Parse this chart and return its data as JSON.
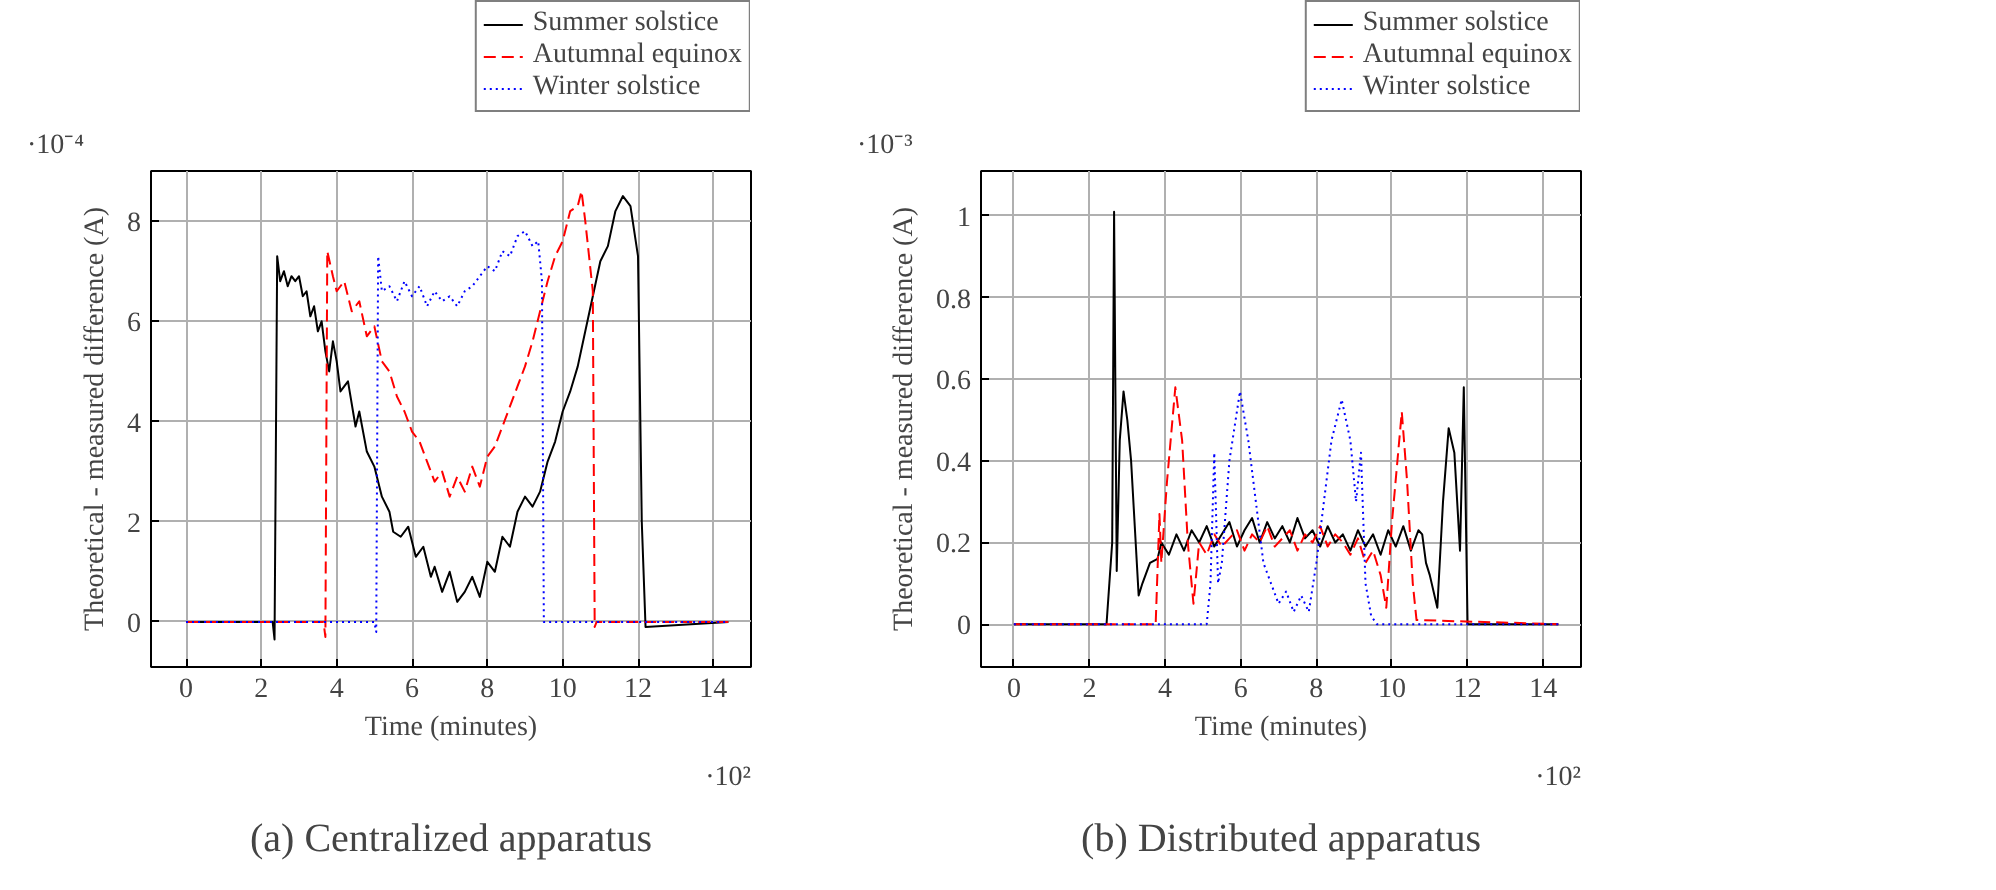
{
  "chart_data": [
    {
      "type": "line",
      "title": "(a) Centralized apparatus",
      "xlabel": "Time (minutes)",
      "ylabel": "Theoretical - measured difference (A)",
      "annotations": [
        "·10⁻⁴",
        "·10²"
      ],
      "xlim": [
        -0.93,
        15
      ],
      "ylim": [
        -0.9,
        9
      ],
      "xticks": [
        0,
        2,
        4,
        6,
        8,
        10,
        12,
        14
      ],
      "yticks": [
        0,
        2,
        4,
        6,
        8
      ],
      "grid": true,
      "legend": "top right",
      "series": [
        {
          "name": "Summer solstice",
          "color": "#000000",
          "line_style": "solid",
          "x": [
            0,
            2.3,
            2.35,
            2.42,
            2.5,
            2.6,
            2.7,
            2.8,
            2.9,
            3.0,
            3.1,
            3.2,
            3.3,
            3.4,
            3.5,
            3.6,
            3.7,
            3.8,
            3.9,
            4.0,
            4.1,
            4.3,
            4.5,
            4.6,
            4.8,
            5.0,
            5.2,
            5.4,
            5.5,
            5.7,
            5.9,
            6.1,
            6.3,
            6.5,
            6.6,
            6.8,
            7.0,
            7.2,
            7.4,
            7.6,
            7.8,
            8.0,
            8.2,
            8.4,
            8.6,
            8.8,
            9.0,
            9.2,
            9.4,
            9.6,
            9.8,
            10.0,
            10.2,
            10.4,
            10.6,
            10.8,
            11.0,
            11.2,
            11.4,
            11.6,
            11.8,
            12.0,
            12.1,
            12.2,
            14.4
          ],
          "values": [
            0,
            0,
            -0.35,
            7.3,
            6.8,
            7.0,
            6.7,
            6.9,
            6.8,
            6.9,
            6.5,
            6.6,
            6.1,
            6.3,
            5.8,
            6.0,
            5.4,
            5.0,
            5.6,
            5.2,
            4.6,
            4.8,
            3.9,
            4.2,
            3.4,
            3.1,
            2.5,
            2.2,
            1.8,
            1.7,
            1.9,
            1.3,
            1.5,
            0.9,
            1.1,
            0.6,
            1.0,
            0.4,
            0.6,
            0.9,
            0.5,
            1.2,
            1.0,
            1.7,
            1.5,
            2.2,
            2.5,
            2.3,
            2.6,
            3.2,
            3.6,
            4.2,
            4.6,
            5.1,
            5.8,
            6.5,
            7.2,
            7.5,
            8.2,
            8.5,
            8.3,
            7.3,
            2.0,
            -0.1,
            0
          ]
        },
        {
          "name": "Autumnal equinox",
          "color": "#ff0000",
          "line_style": "dashed",
          "x": [
            0,
            3.65,
            3.7,
            3.75,
            3.9,
            4.0,
            4.2,
            4.4,
            4.6,
            4.8,
            5.0,
            5.2,
            5.4,
            5.6,
            5.8,
            6.0,
            6.2,
            6.4,
            6.6,
            6.8,
            7.0,
            7.2,
            7.4,
            7.6,
            7.8,
            8.0,
            8.2,
            8.4,
            8.6,
            8.8,
            9.0,
            9.2,
            9.4,
            9.6,
            9.8,
            10.0,
            10.2,
            10.4,
            10.5,
            10.6,
            10.7,
            10.8,
            10.85,
            10.9,
            14.4
          ],
          "values": [
            0,
            0,
            -0.3,
            7.4,
            6.9,
            6.6,
            6.8,
            6.2,
            6.4,
            5.7,
            5.9,
            5.2,
            5.0,
            4.5,
            4.2,
            3.8,
            3.6,
            3.2,
            2.8,
            3.0,
            2.5,
            2.9,
            2.6,
            3.1,
            2.7,
            3.3,
            3.5,
            3.9,
            4.3,
            4.7,
            5.1,
            5.6,
            6.2,
            6.8,
            7.3,
            7.6,
            8.2,
            8.3,
            8.6,
            8.0,
            7.3,
            6.6,
            -0.1,
            0,
            0
          ]
        },
        {
          "name": "Winter solstice",
          "color": "#0000ff",
          "line_style": "dotted",
          "x": [
            0,
            5.0,
            5.05,
            5.1,
            5.2,
            5.4,
            5.6,
            5.8,
            6.0,
            6.2,
            6.4,
            6.6,
            6.8,
            7.0,
            7.2,
            7.4,
            7.6,
            7.8,
            8.0,
            8.2,
            8.4,
            8.6,
            8.8,
            9.0,
            9.2,
            9.35,
            9.45,
            9.5,
            14.4
          ],
          "values": [
            0,
            0,
            -0.2,
            7.3,
            6.6,
            6.7,
            6.4,
            6.8,
            6.5,
            6.7,
            6.3,
            6.6,
            6.4,
            6.5,
            6.3,
            6.6,
            6.7,
            6.9,
            7.1,
            7.0,
            7.4,
            7.3,
            7.7,
            7.8,
            7.5,
            7.6,
            6.8,
            0,
            0
          ]
        }
      ]
    },
    {
      "type": "line",
      "title": "(b) Distributed apparatus",
      "xlabel": "Time (minutes)",
      "ylabel": "Theoretical - measured difference (A)",
      "annotations": [
        "·10⁻³",
        "·10²"
      ],
      "xlim": [
        -0.87,
        15
      ],
      "ylim": [
        -0.105,
        1.11
      ],
      "xticks": [
        0,
        2,
        4,
        6,
        8,
        10,
        12,
        14
      ],
      "yticks": [
        0,
        0.2,
        0.4,
        0.6,
        0.8,
        1
      ],
      "grid": true,
      "legend": "top right",
      "series": [
        {
          "name": "Summer solstice",
          "color": "#000000",
          "line_style": "solid",
          "x": [
            0,
            2.45,
            2.6,
            2.65,
            2.72,
            2.8,
            2.9,
            3.0,
            3.1,
            3.3,
            3.4,
            3.6,
            3.8,
            3.9,
            4.1,
            4.3,
            4.5,
            4.7,
            4.9,
            5.1,
            5.3,
            5.5,
            5.7,
            5.9,
            6.1,
            6.3,
            6.5,
            6.7,
            6.9,
            7.1,
            7.3,
            7.5,
            7.7,
            7.9,
            8.1,
            8.3,
            8.5,
            8.7,
            8.9,
            9.1,
            9.3,
            9.5,
            9.7,
            9.9,
            10.1,
            10.3,
            10.5,
            10.7,
            10.8,
            10.9,
            11.0,
            11.2,
            11.35,
            11.5,
            11.65,
            11.8,
            11.9,
            12.0,
            14.4
          ],
          "values": [
            0,
            0,
            0.2,
            1.01,
            0.13,
            0.45,
            0.57,
            0.5,
            0.4,
            0.07,
            0.1,
            0.15,
            0.16,
            0.2,
            0.17,
            0.22,
            0.18,
            0.23,
            0.2,
            0.24,
            0.19,
            0.22,
            0.25,
            0.19,
            0.23,
            0.26,
            0.2,
            0.25,
            0.21,
            0.24,
            0.2,
            0.26,
            0.21,
            0.23,
            0.19,
            0.24,
            0.2,
            0.22,
            0.18,
            0.23,
            0.19,
            0.22,
            0.17,
            0.23,
            0.19,
            0.24,
            0.18,
            0.23,
            0.22,
            0.15,
            0.12,
            0.04,
            0.3,
            0.48,
            0.42,
            0.18,
            0.58,
            0,
            0
          ]
        },
        {
          "name": "Autumnal equinox",
          "color": "#ff0000",
          "line_style": "dashed",
          "x": [
            0,
            3.75,
            3.85,
            3.9,
            4.05,
            4.27,
            4.45,
            4.6,
            4.75,
            4.9,
            5.1,
            5.3,
            5.5,
            5.7,
            5.9,
            6.1,
            6.3,
            6.5,
            6.7,
            6.9,
            7.1,
            7.3,
            7.5,
            7.7,
            7.9,
            8.1,
            8.3,
            8.5,
            8.7,
            8.9,
            9.1,
            9.3,
            9.5,
            9.7,
            9.85,
            10.0,
            10.26,
            10.4,
            10.55,
            10.65,
            14.4
          ],
          "values": [
            0,
            0,
            0.27,
            0.15,
            0.35,
            0.58,
            0.45,
            0.2,
            0.05,
            0.2,
            0.17,
            0.22,
            0.19,
            0.21,
            0.23,
            0.18,
            0.22,
            0.2,
            0.24,
            0.19,
            0.21,
            0.23,
            0.18,
            0.22,
            0.2,
            0.24,
            0.19,
            0.22,
            0.2,
            0.17,
            0.21,
            0.15,
            0.18,
            0.12,
            0.04,
            0.25,
            0.52,
            0.35,
            0.1,
            0.01,
            0
          ]
        },
        {
          "name": "Winter solstice",
          "color": "#0000ff",
          "line_style": "dotted",
          "x": [
            0,
            5.1,
            5.2,
            5.3,
            5.4,
            5.5,
            5.7,
            5.98,
            6.2,
            6.4,
            6.6,
            6.8,
            7.0,
            7.2,
            7.4,
            7.6,
            7.8,
            8.0,
            8.2,
            8.4,
            8.67,
            8.9,
            9.05,
            9.18,
            9.3,
            9.45,
            9.6,
            14.4
          ],
          "values": [
            0,
            0,
            0.1,
            0.42,
            0.1,
            0.15,
            0.4,
            0.57,
            0.45,
            0.3,
            0.15,
            0.1,
            0.05,
            0.08,
            0.03,
            0.07,
            0.03,
            0.15,
            0.3,
            0.45,
            0.55,
            0.45,
            0.3,
            0.42,
            0.1,
            0.02,
            0,
            0
          ]
        }
      ]
    }
  ]
}
